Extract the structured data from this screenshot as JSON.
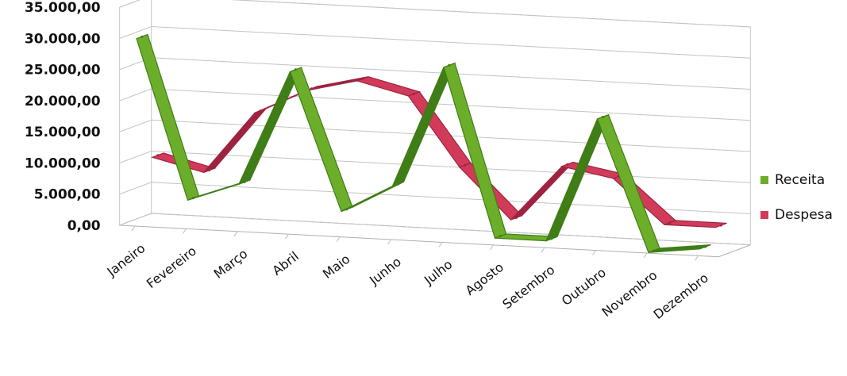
{
  "chart_data": {
    "type": "line",
    "categories": [
      "Janeiro",
      "Fevereiro",
      "Março",
      "Abril",
      "Maio",
      "Junho",
      "Julho",
      "Agosto",
      "Setembro",
      "Outubro",
      "Novembro",
      "Dezembro"
    ],
    "series": [
      {
        "name": "Receita",
        "values": [
          30000,
          4500,
          7500,
          26000,
          4000,
          8500,
          28000,
          1000,
          1000,
          21000,
          0,
          1000
        ],
        "color": "#6cae2a"
      },
      {
        "name": "Despesa",
        "values": [
          10000,
          8000,
          18000,
          22000,
          24000,
          22000,
          11000,
          3000,
          12000,
          10500,
          3500,
          3500
        ],
        "color": "#d23a5a"
      }
    ],
    "y_ticks": [
      "35.000,00",
      "30.000,00",
      "25.000,00",
      "20.000,00",
      "15.000,00",
      "10.000,00",
      "5.000,00",
      "0,00"
    ],
    "ylim": [
      0,
      35000
    ],
    "grid": true,
    "legend_position": "right",
    "style": "3d-line"
  }
}
